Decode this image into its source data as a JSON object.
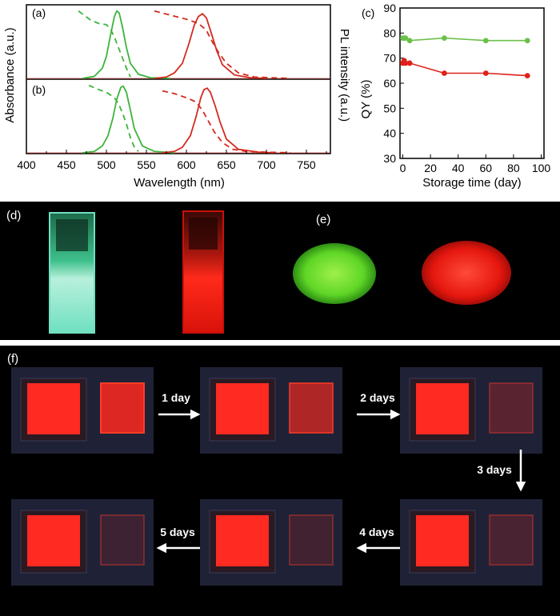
{
  "chart_data": [
    {
      "type": "line",
      "panel_label": "(a)",
      "xlim": [
        400,
        780
      ],
      "ylim": [
        0,
        1
      ],
      "series": [
        {
          "color": "#3cb43c",
          "style": "solid",
          "x": [
            470,
            485,
            495,
            500,
            505,
            510,
            513,
            516,
            520,
            525,
            530,
            540,
            555,
            580
          ],
          "y": [
            0.0,
            0.03,
            0.15,
            0.32,
            0.62,
            0.9,
            0.98,
            0.95,
            0.75,
            0.45,
            0.22,
            0.06,
            0.01,
            0.0
          ]
        },
        {
          "color": "#3cb43c",
          "style": "dashed",
          "x": [
            465,
            480,
            490,
            500,
            505,
            510,
            515,
            520,
            525,
            530
          ],
          "y": [
            0.98,
            0.85,
            0.8,
            0.78,
            0.72,
            0.6,
            0.45,
            0.3,
            0.15,
            0.02
          ]
        },
        {
          "color": "#d42a1f",
          "style": "solid",
          "x": [
            560,
            575,
            585,
            595,
            603,
            610,
            615,
            620,
            625,
            630,
            638,
            645,
            660,
            680,
            700
          ],
          "y": [
            0.0,
            0.02,
            0.08,
            0.22,
            0.5,
            0.78,
            0.9,
            0.94,
            0.88,
            0.7,
            0.4,
            0.2,
            0.05,
            0.01,
            0.0
          ]
        },
        {
          "color": "#d42a1f",
          "style": "dashed",
          "x": [
            560,
            580,
            600,
            615,
            625,
            630,
            640,
            650,
            665,
            685,
            705,
            730
          ],
          "y": [
            0.98,
            0.92,
            0.86,
            0.8,
            0.7,
            0.58,
            0.38,
            0.22,
            0.08,
            0.02,
            0.01,
            0.0
          ]
        }
      ]
    },
    {
      "type": "line",
      "panel_label": "(b)",
      "xlim": [
        400,
        780
      ],
      "ylim": [
        0,
        1
      ],
      "xlabel": "Wavelength (nm)",
      "xticks": [
        400,
        450,
        500,
        550,
        600,
        650,
        700,
        750
      ],
      "series": [
        {
          "color": "#3cb43c",
          "style": "solid",
          "x": [
            470,
            485,
            495,
            502,
            508,
            513,
            518,
            521,
            525,
            530,
            535,
            545,
            560,
            585
          ],
          "y": [
            0.0,
            0.02,
            0.1,
            0.25,
            0.5,
            0.78,
            0.95,
            0.97,
            0.88,
            0.62,
            0.35,
            0.1,
            0.02,
            0.0
          ]
        },
        {
          "color": "#3cb43c",
          "style": "dashed",
          "x": [
            478,
            490,
            500,
            510,
            515,
            520,
            525,
            530,
            535,
            540
          ],
          "y": [
            0.98,
            0.92,
            0.88,
            0.8,
            0.72,
            0.58,
            0.42,
            0.22,
            0.08,
            0.02
          ]
        },
        {
          "color": "#d42a1f",
          "style": "solid",
          "x": [
            570,
            585,
            595,
            605,
            612,
            618,
            622,
            626,
            630,
            636,
            642,
            650,
            665,
            690,
            710
          ],
          "y": [
            0.0,
            0.02,
            0.08,
            0.25,
            0.52,
            0.8,
            0.92,
            0.94,
            0.88,
            0.68,
            0.45,
            0.2,
            0.05,
            0.01,
            0.0
          ]
        },
        {
          "color": "#d42a1f",
          "style": "dashed",
          "x": [
            570,
            585,
            600,
            612,
            620,
            628,
            635,
            645,
            658,
            675,
            700,
            730
          ],
          "y": [
            0.9,
            0.86,
            0.8,
            0.74,
            0.62,
            0.45,
            0.3,
            0.15,
            0.05,
            0.02,
            0.01,
            0.0
          ]
        }
      ]
    },
    {
      "type": "scatter",
      "panel_label": "(c)",
      "xlabel": "Storage time (day)",
      "ylabel": "QY (%)",
      "xlim": [
        -2,
        102
      ],
      "ylim": [
        30,
        90
      ],
      "xticks": [
        0,
        20,
        40,
        60,
        80,
        100
      ],
      "yticks": [
        30,
        40,
        50,
        60,
        70,
        80,
        90
      ],
      "series": [
        {
          "color": "#6cc04a",
          "x": [
            0,
            1,
            2,
            5,
            30,
            60,
            90
          ],
          "y": [
            78,
            78,
            78,
            77,
            78,
            77,
            77
          ]
        },
        {
          "color": "#e0201a",
          "x": [
            0,
            1,
            2,
            5,
            30,
            60,
            90
          ],
          "y": [
            68,
            69,
            68,
            68,
            64,
            64,
            63
          ]
        }
      ]
    }
  ],
  "shared_labels": {
    "left_ylabel": "Absorbance (a.u.)",
    "right_ylabel": "PL intensity (a.u.)"
  },
  "photos": {
    "d_label": "(d)",
    "e_label": "(e)",
    "f_label": "(f)",
    "steps": [
      "1 day",
      "2 days",
      "3 days",
      "4 days",
      "5 days"
    ]
  }
}
